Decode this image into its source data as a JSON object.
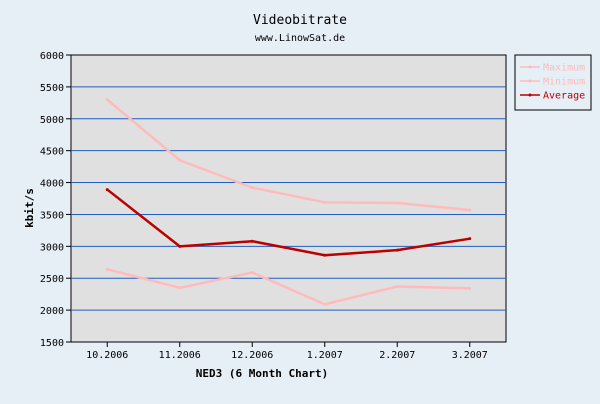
{
  "chart_data": {
    "type": "line",
    "title": "Videobitrate",
    "subtitle": "www.LinowSat.de",
    "xlabel": "NED3 (6 Month Chart)",
    "ylabel": "kbit/s",
    "categories": [
      "10.2006",
      "11.2006",
      "12.2006",
      "1.2007",
      "2.2007",
      "3.2007"
    ],
    "ylim": [
      1500,
      6000
    ],
    "yticks": [
      1500,
      2000,
      2500,
      3000,
      3500,
      4000,
      4500,
      5000,
      5500,
      6000
    ],
    "grid": true,
    "legend_position": "right",
    "series": [
      {
        "name": "Maximum",
        "color": "#ffbbbb",
        "values": [
          5300,
          4350,
          3920,
          3690,
          3680,
          3570
        ]
      },
      {
        "name": "Minimum",
        "color": "#ffbbbb",
        "values": [
          2640,
          2350,
          2590,
          2090,
          2370,
          2340
        ]
      },
      {
        "name": "Average",
        "color": "#bb0000",
        "values": [
          3890,
          3000,
          3080,
          2860,
          2940,
          3120
        ]
      }
    ]
  },
  "colors": {
    "background": "#e6eef6",
    "plot_background": "#e0e0e0",
    "gridline": "#1f5fbf"
  }
}
